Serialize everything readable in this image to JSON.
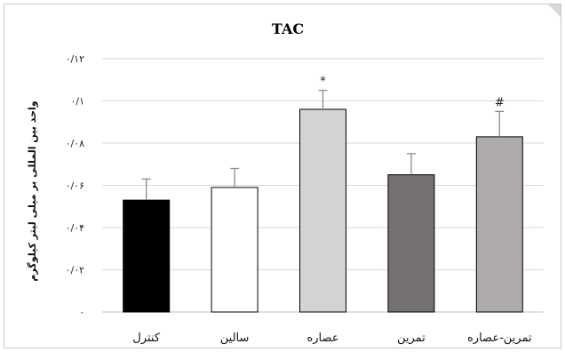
{
  "chart_data": {
    "type": "bar",
    "title": "TAC",
    "ylabel": "واحد بین المللی بر میلی لیتر کیلوگرم",
    "xlabel": "",
    "ylim": [
      0,
      0.12
    ],
    "yticks": [
      0,
      0.02,
      0.04,
      0.06,
      0.08,
      0.1,
      0.12
    ],
    "ytick_labels": [
      "۰",
      "۰/۰۲",
      "۰/۰۴",
      "۰/۰۶",
      "۰/۰۸",
      "۰/۱",
      "۰/۱۲"
    ],
    "categories": [
      "کنترل",
      "سالین",
      "عصاره",
      "تمرین",
      "تمرین-عصاره"
    ],
    "values": [
      0.053,
      0.059,
      0.096,
      0.065,
      0.083
    ],
    "errors": [
      0.01,
      0.009,
      0.009,
      0.01,
      0.012
    ],
    "bar_colors": [
      "#000000",
      "#ffffff",
      "#d3d3d3",
      "#767171",
      "#aeaaaa"
    ],
    "annotations": [
      "",
      "",
      "*",
      "",
      "#"
    ],
    "grid": true,
    "legend": "none"
  }
}
